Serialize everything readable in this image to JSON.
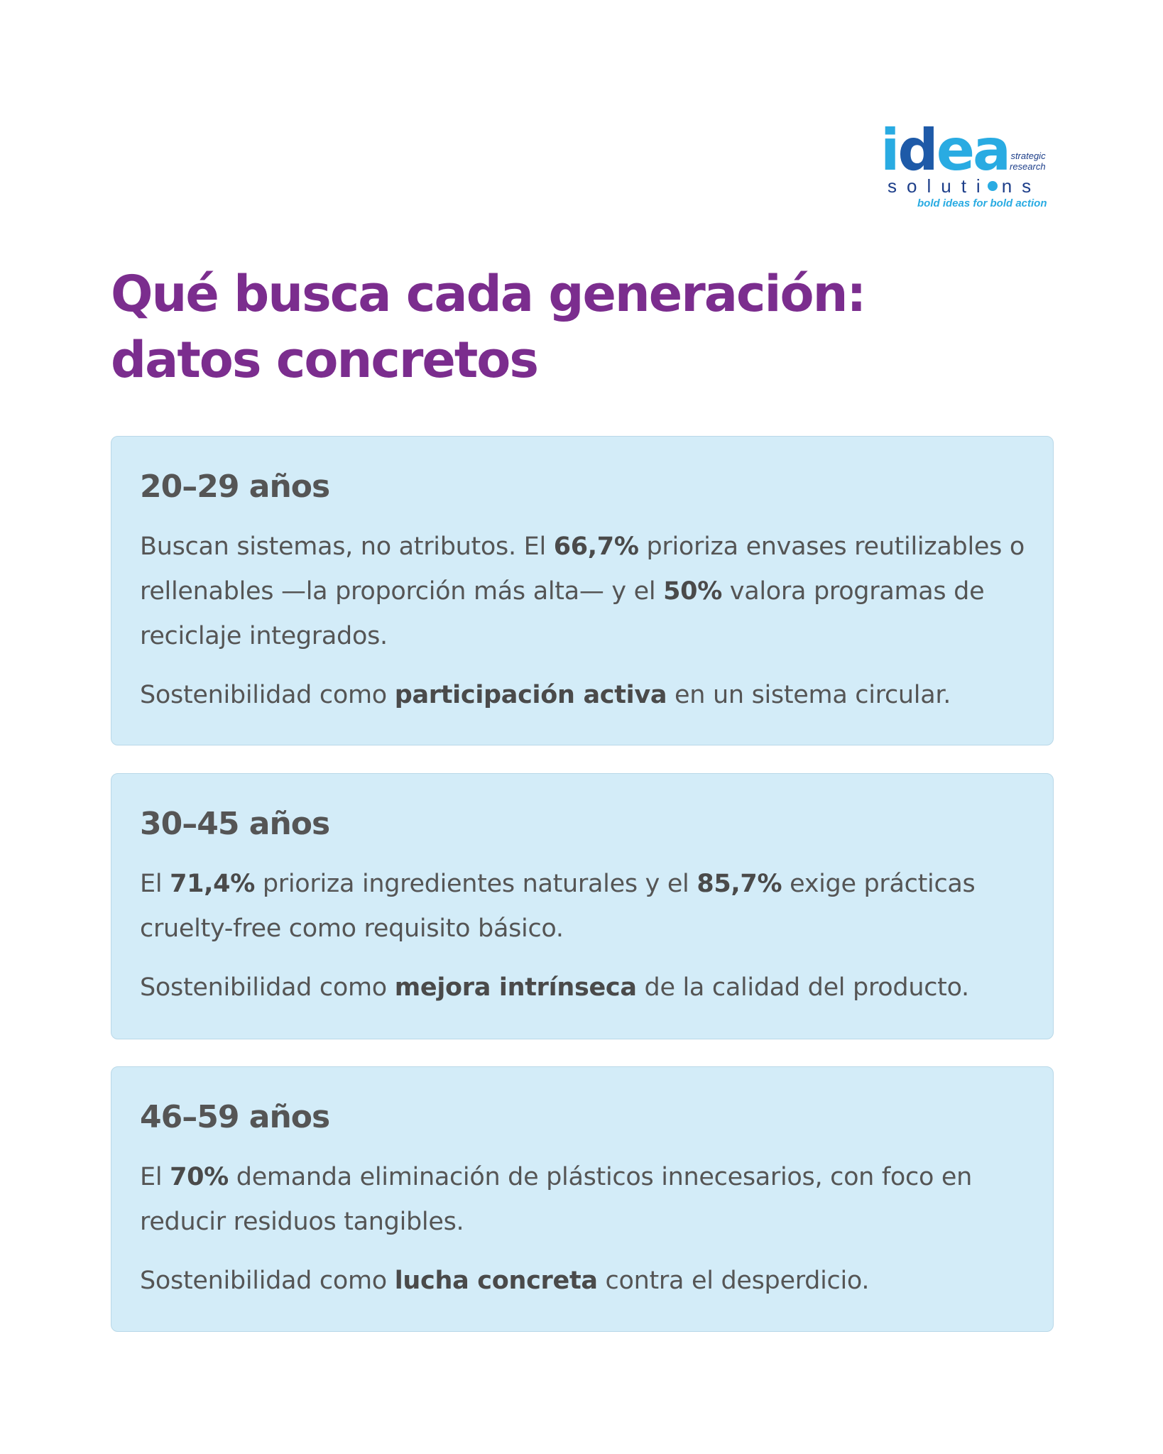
{
  "logo": {
    "main": "idea",
    "side_1": "strategic",
    "side_2": "research",
    "solutions_a": "soluti",
    "solutions_b": "ns",
    "tagline": "bold ideas for bold action"
  },
  "title": {
    "line1": "Qué busca cada generación:",
    "line2": "datos concretos"
  },
  "cards": [
    {
      "heading": "20–29 años",
      "body": {
        "t1": "Buscan sistemas, no atributos. El ",
        "b1": "66,7%",
        "t2": " prioriza envases reutilizables o rellenables —la proporción más alta— y el ",
        "b2": "50%",
        "t3": " valora programas de reciclaje integrados."
      },
      "summary": {
        "t1": "Sostenibilidad como ",
        "b1": "participación activa",
        "t2": " en un sistema circular."
      }
    },
    {
      "heading": "30–45 años",
      "body": {
        "t1": "El ",
        "b1": "71,4%",
        "t2": " prioriza ingredientes naturales y el ",
        "b2": "85,7%",
        "t3": " exige prácticas cruelty-free como requisito básico."
      },
      "summary": {
        "t1": "Sostenibilidad como ",
        "b1": "mejora intrínseca",
        "t2": " de la calidad del producto."
      }
    },
    {
      "heading": "46–59 años",
      "body": {
        "t1": "El ",
        "b1": "70%",
        "t2": " demanda eliminación de plásticos innecesarios, con foco en reducir residuos tangibles."
      },
      "summary": {
        "t1": "Sostenibilidad como ",
        "b1": "lucha concreta",
        "t2": " contra el desperdicio."
      }
    }
  ],
  "colors": {
    "title": "#7b2d8e",
    "card_background": "#d3ecf8",
    "text": "#555555",
    "logo_light_blue": "#29abe2",
    "logo_dark_blue": "#1e3f8a"
  }
}
